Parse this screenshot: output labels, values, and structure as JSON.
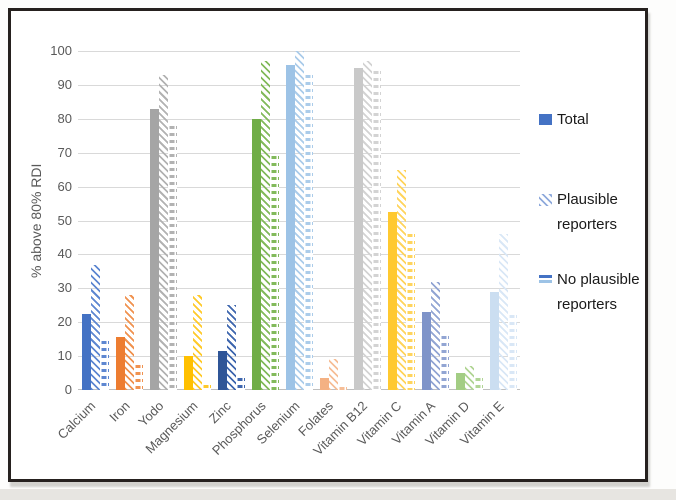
{
  "chart_data": {
    "type": "bar",
    "title": "",
    "xlabel": "",
    "ylabel": "% above 80% RDI",
    "ylim": [
      0,
      100
    ],
    "ytick_step": 10,
    "grid": true,
    "legend_position": "right",
    "categories": [
      "Calcium",
      "Iron",
      "Yodo",
      "Magnesium",
      "Zinc",
      "Phosphorus",
      "Selenium",
      "Folates",
      "Vitamin B12",
      "Vitamin C",
      "Vitamin A",
      "Vitamin D",
      "Vitamin E"
    ],
    "series": [
      {
        "name": "Total",
        "style": "solid",
        "values": [
          22.5,
          15.5,
          83,
          10,
          11.5,
          80,
          96,
          3.5,
          95,
          52.5,
          23,
          5,
          29
        ]
      },
      {
        "name": "Plausible reporters",
        "style": "diagonal-hatch",
        "values": [
          37,
          28,
          93,
          28,
          25,
          97,
          100,
          9,
          97,
          65,
          32,
          7,
          46
        ]
      },
      {
        "name": "No plausible reporters",
        "style": "horizontal-dash",
        "values": [
          14.5,
          7.5,
          78,
          1.5,
          3.5,
          69,
          93,
          1,
          94,
          46,
          16,
          3.5,
          22
        ]
      }
    ],
    "category_colors": [
      {
        "solid": "#4472C4",
        "pattern": "#5E87D1"
      },
      {
        "solid": "#ED7D31",
        "pattern": "#F0924F"
      },
      {
        "solid": "#A5A5A5",
        "pattern": "#B2B2B2"
      },
      {
        "solid": "#FFC000",
        "pattern": "#FFCA2B"
      },
      {
        "solid": "#2F5597",
        "pattern": "#3E66AE"
      },
      {
        "solid": "#70AD47",
        "pattern": "#82BA5B"
      },
      {
        "solid": "#9DC3E6",
        "pattern": "#ABCCEA"
      },
      {
        "solid": "#F4B183",
        "pattern": "#F6BE97"
      },
      {
        "solid": "#C9C9C9",
        "pattern": "#D3D3D3"
      },
      {
        "solid": "#FFC930",
        "pattern": "#FFD45C"
      },
      {
        "solid": "#7F94C9",
        "pattern": "#92A5D3"
      },
      {
        "solid": "#A3CD84",
        "pattern": "#B1D595"
      },
      {
        "solid": "#CBDEF1",
        "pattern": "#D9E7F6"
      }
    ]
  },
  "legend": {
    "swatch_solid_color": "#4472C4",
    "swatch_hatch_color": "#8FAADC",
    "swatch_dash_top_color": "#4472C4",
    "swatch_dash_bottom_color": "#9DC3E6"
  },
  "frame": {
    "border_color": "#26211f",
    "gridline_color": "#d9d9d9",
    "axis_color": "#bfbfbf",
    "tick_text_color": "#595959"
  }
}
